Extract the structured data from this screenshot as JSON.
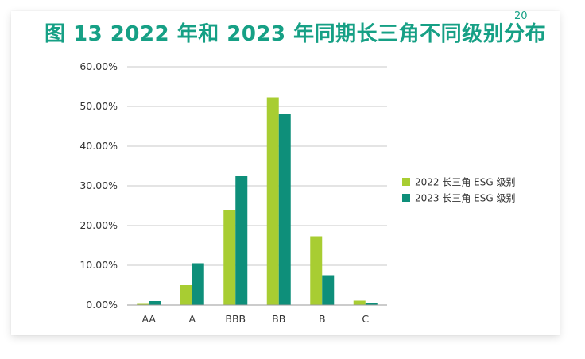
{
  "header": {
    "title": "图 13 2022 年和 2023 年同期长三角不同级别分布",
    "page_number": "20"
  },
  "chart_data": {
    "type": "bar",
    "categories": [
      "AA",
      "A",
      "BBB",
      "BB",
      "B",
      "C"
    ],
    "series": [
      {
        "name": "2022 长三角 ESG 级别",
        "color": "#a8cd32",
        "values": [
          0.3,
          5.0,
          24.0,
          52.3,
          17.3,
          1.1
        ]
      },
      {
        "name": "2023 长三角 ESG 级别",
        "color": "#0e8f7a",
        "values": [
          1.0,
          10.5,
          32.6,
          48.1,
          7.5,
          0.4
        ]
      }
    ],
    "y_ticks": [
      "0.00%",
      "10.00%",
      "20.00%",
      "30.00%",
      "40.00%",
      "50.00%",
      "60.00%"
    ],
    "ylim": [
      0,
      60
    ],
    "grid": true,
    "legend_position": "right"
  }
}
